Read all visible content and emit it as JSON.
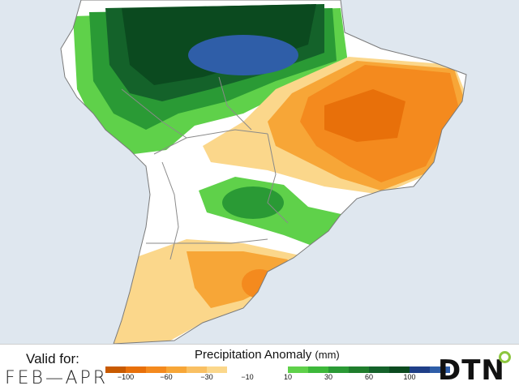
{
  "map": {
    "ocean_color": "#dfe7ef",
    "land_color": "#ffffff",
    "border_color": "#8a8a8a"
  },
  "legend": {
    "valid_label": "Valid for:",
    "valid_period": "FEB—APR",
    "title": "Precipitation Anomaly",
    "unit": "(mm)",
    "dry_ticks": [
      "−100",
      "−60",
      "−30",
      "−10"
    ],
    "wet_ticks": [
      "10",
      "30",
      "60",
      "100"
    ],
    "dry_colors": [
      "#c85a00",
      "#e8700a",
      "#f48a1e",
      "#f7a637",
      "#f9c063",
      "#fbd78b"
    ],
    "wet_colors": [
      "#5fd14a",
      "#3db83a",
      "#2a9a35",
      "#1f7d2c",
      "#14622a",
      "#0b4a1f",
      "#1f3f88",
      "#2f5ea8"
    ]
  },
  "brand": {
    "logo_text": "DTN",
    "accent": "#8cc63f"
  }
}
